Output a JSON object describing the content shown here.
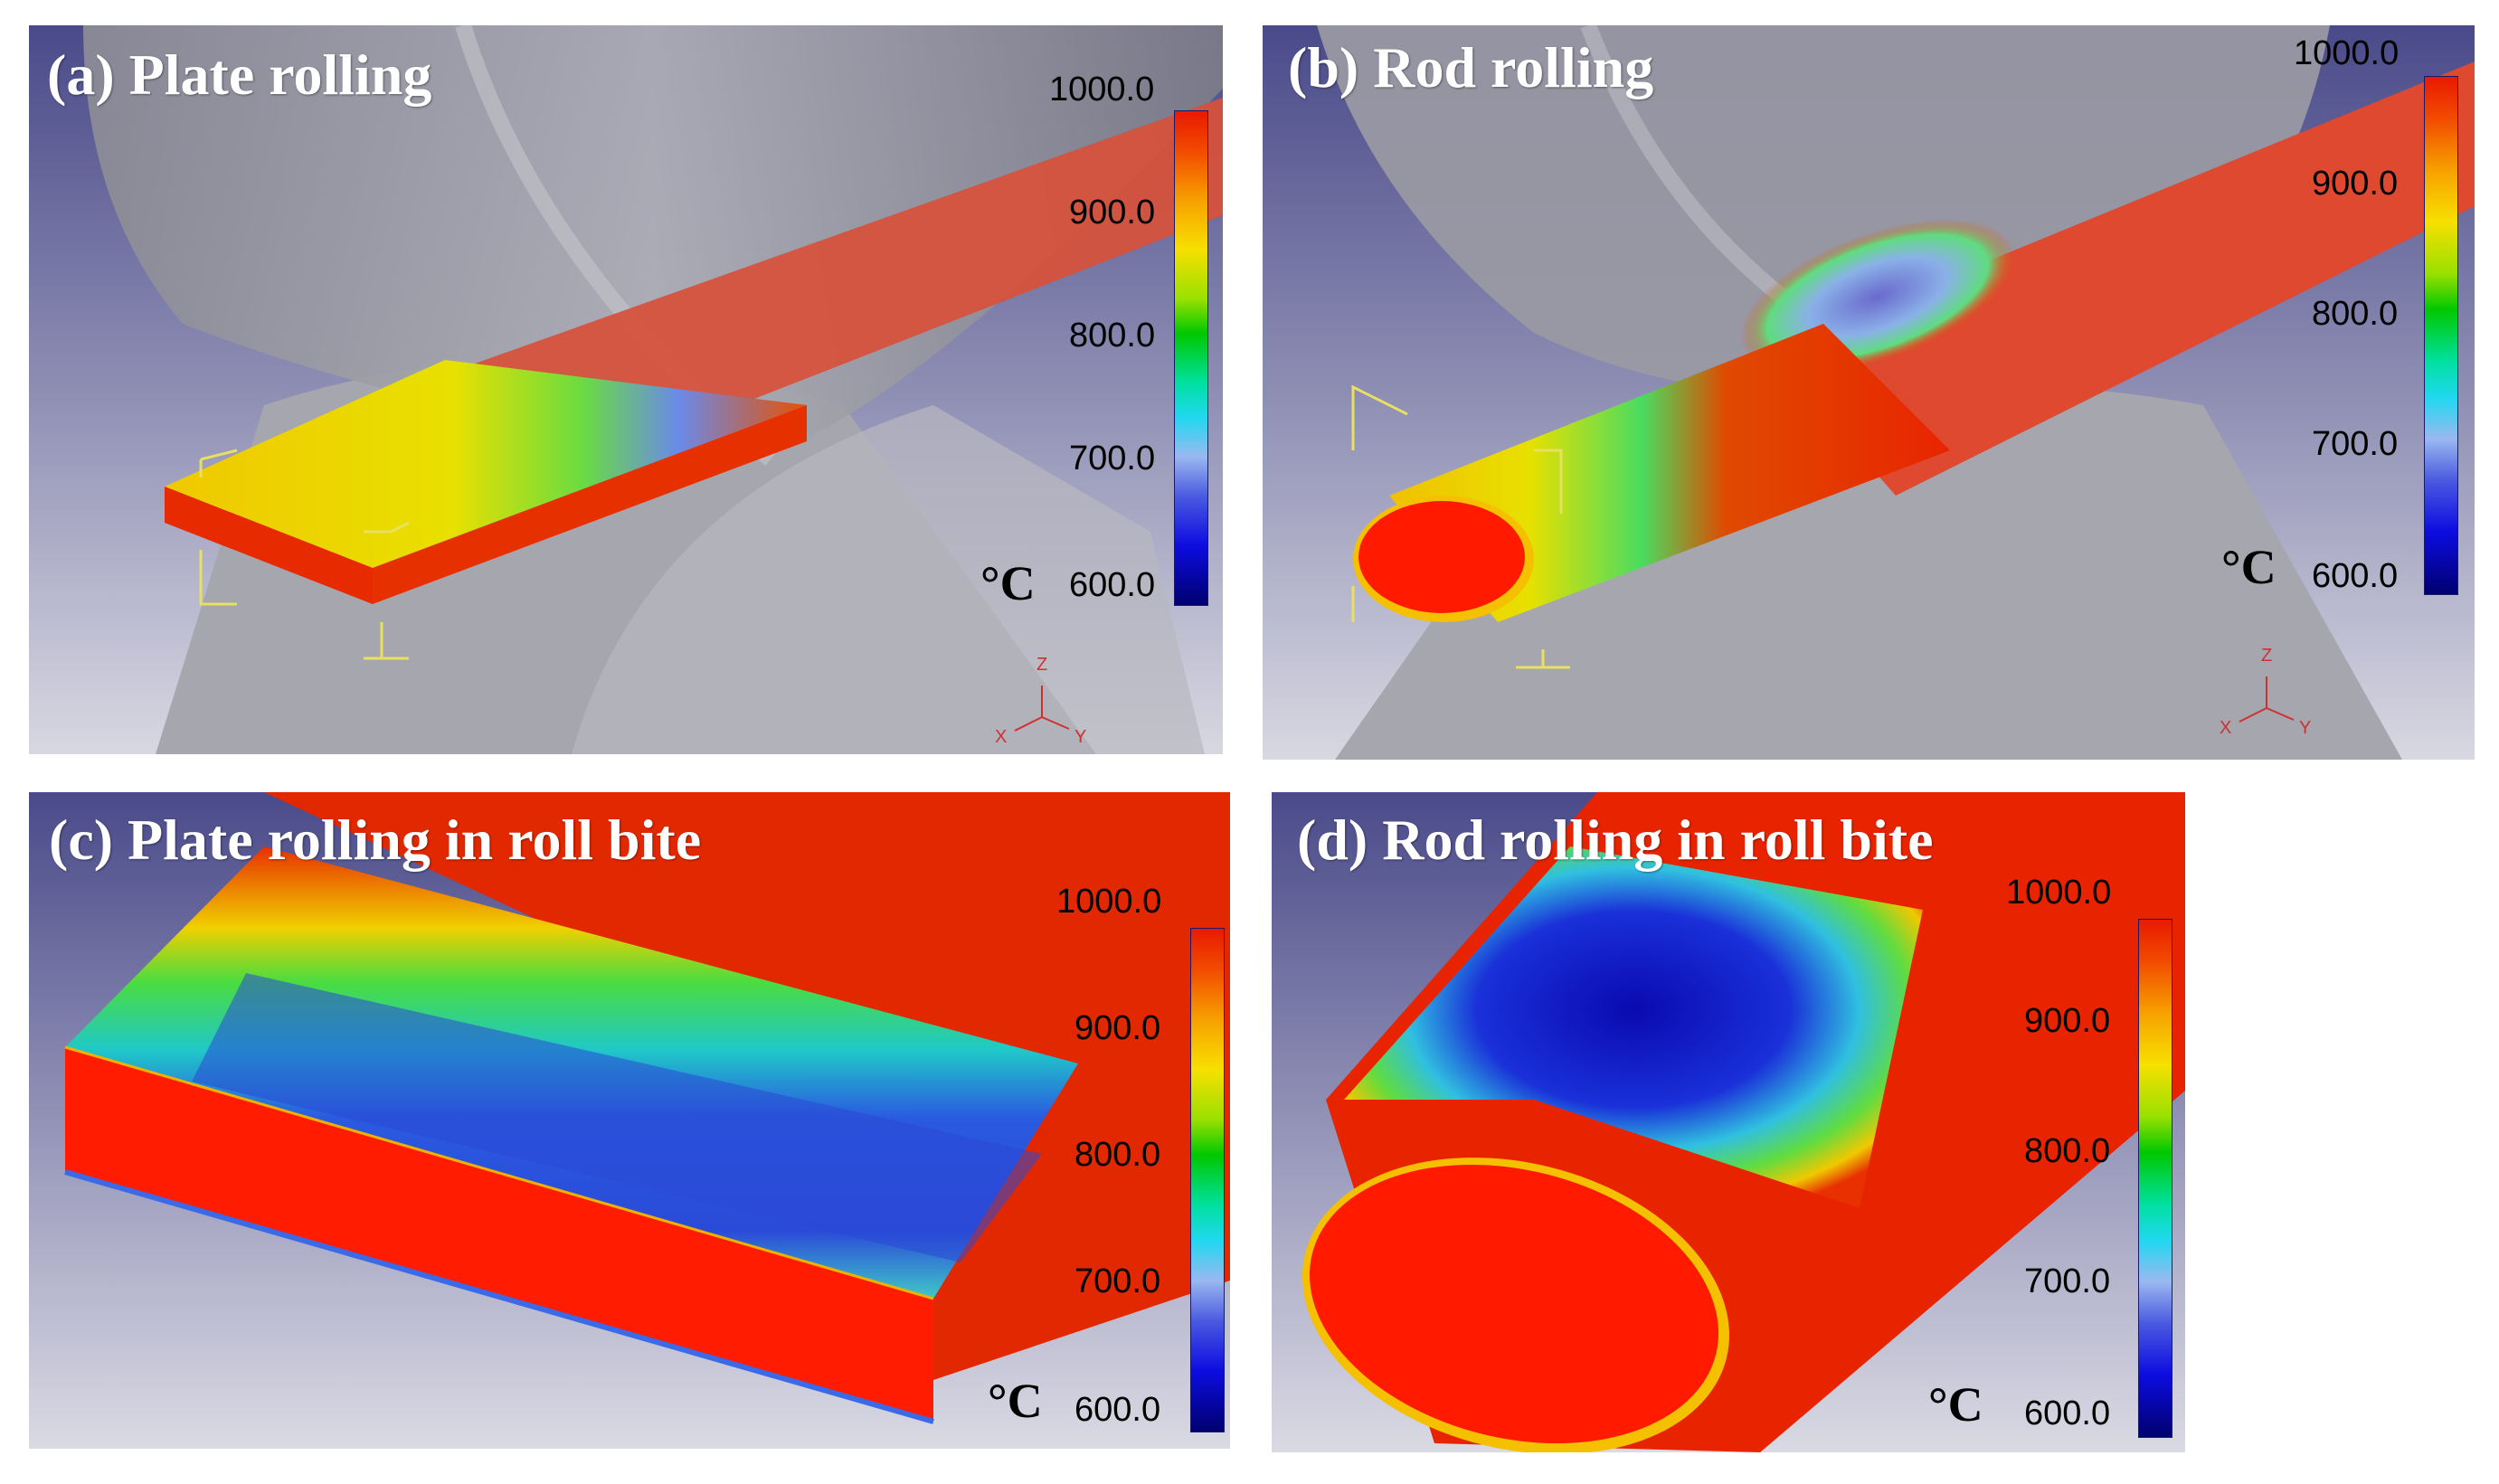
{
  "panels": {
    "a": {
      "title": "(a) Plate rolling",
      "unit": "°C",
      "ticks": [
        "1000.0",
        "900.0",
        "800.0",
        "700.0",
        "600.0"
      ],
      "axes": {
        "z": "Z",
        "x": "X",
        "y": "Y"
      }
    },
    "b": {
      "title": "(b) Rod rolling",
      "unit": "°C",
      "ticks": [
        "1000.0",
        "900.0",
        "800.0",
        "700.0",
        "600.0"
      ],
      "axes": {
        "z": "Z",
        "x": "X",
        "y": "Y"
      }
    },
    "c": {
      "title": "(c) Plate rolling in roll bite",
      "unit": "°C",
      "ticks": [
        "1000.0",
        "900.0",
        "800.0",
        "700.0",
        "600.0"
      ]
    },
    "d": {
      "title": "(d) Rod rolling in roll bite",
      "unit": "°C",
      "ticks": [
        "1000.0",
        "900.0",
        "800.0",
        "700.0",
        "600.0"
      ]
    }
  },
  "colors": {
    "hot": "#e81a00",
    "cold": "#000070",
    "background_top": "#5a5a9a",
    "background_bottom": "#c8c8d8",
    "roll": "#9a9aa2"
  }
}
